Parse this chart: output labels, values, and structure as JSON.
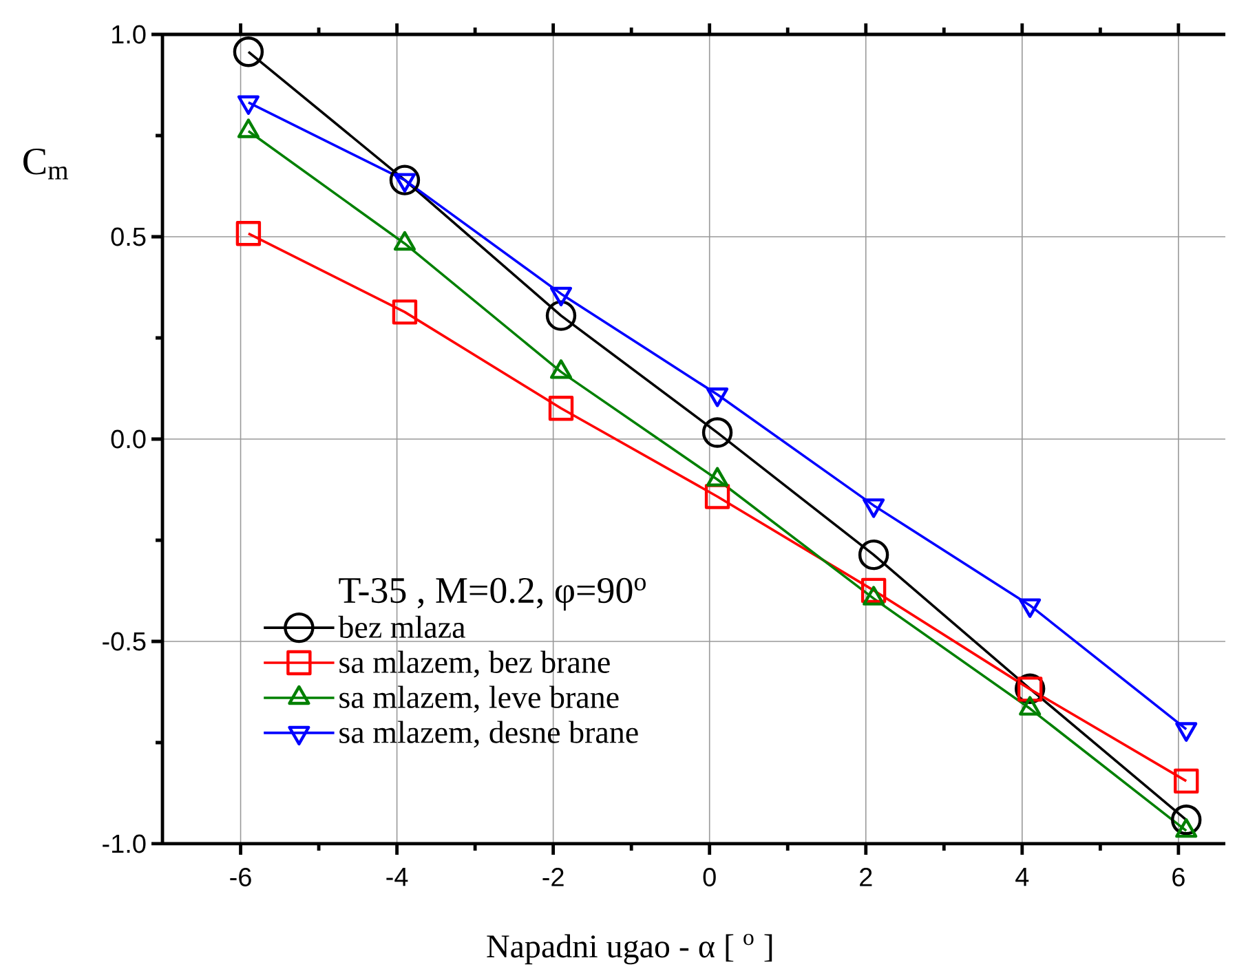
{
  "chart_data": {
    "type": "line",
    "xlabel": "Napadni ugao - α [ $^{o}$ ]",
    "ylabel": "C$_{m}$",
    "legend_title": "T-35 , M=0.2, φ=90$^{o}$",
    "x": [
      -5.9,
      -3.9,
      -1.9,
      0.1,
      2.1,
      4.1,
      6.1
    ],
    "series": [
      {
        "name": "bez mlaza",
        "color": "#000000",
        "marker": "circle",
        "values": [
          0.957,
          0.64,
          0.305,
          0.016,
          -0.286,
          -0.617,
          -0.941
        ]
      },
      {
        "name": "sa mlazem, bez brane",
        "color": "#ff0000",
        "marker": "square",
        "values": [
          0.508,
          0.314,
          0.076,
          -0.142,
          -0.374,
          -0.618,
          -0.845
        ]
      },
      {
        "name": "sa mlazem, leve brane",
        "color": "#008000",
        "marker": "triangle",
        "values": [
          0.761,
          0.483,
          0.166,
          -0.1,
          -0.394,
          -0.666,
          -0.968
        ]
      },
      {
        "name": "sa mlazem, desne brane",
        "color": "#0000ff",
        "marker": "triangle-down",
        "values": [
          0.832,
          0.64,
          0.359,
          0.11,
          -0.164,
          -0.411,
          -0.717
        ]
      }
    ],
    "xlim": [
      -7,
      6.6
    ],
    "ylim": [
      -1,
      1
    ],
    "xticks": [
      -6,
      -4,
      -2,
      0,
      2,
      4,
      6
    ],
    "yticks": [
      {
        "value": -1,
        "label": "-1.0"
      },
      {
        "value": -0.5,
        "label": "-0.5"
      },
      {
        "value": 0,
        "label": "0.0"
      },
      {
        "value": 0.5,
        "label": "0.5"
      },
      {
        "value": 1,
        "label": "1.0"
      }
    ],
    "grid": true,
    "legend": "bottom left",
    "line_style": "solid"
  }
}
